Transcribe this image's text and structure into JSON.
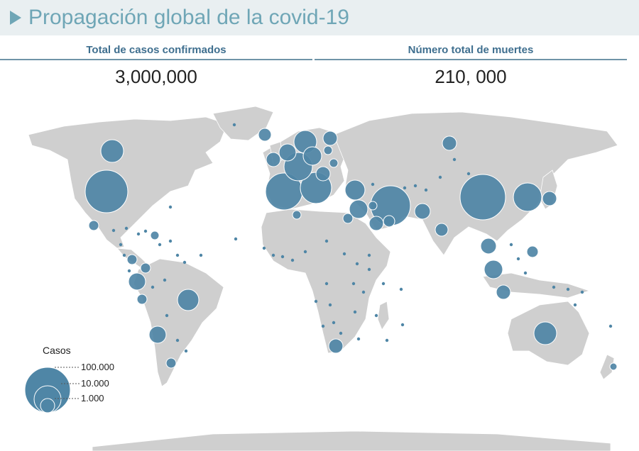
{
  "header": {
    "title": "Propagación global de la covid-19"
  },
  "stats": {
    "cases_label": "Total de casos confirmados",
    "cases_value": "3,000,000",
    "deaths_label": "Número total de muertes",
    "deaths_value": "210, 000"
  },
  "legend": {
    "title": "Casos",
    "levels": [
      "100.000",
      "10.000",
      "1.000"
    ]
  },
  "colors": {
    "bubble": "#4f86a6",
    "land": "#cfcfcf",
    "header_accent": "#6fa6b6",
    "header_bg": "#e9eff1"
  }
}
